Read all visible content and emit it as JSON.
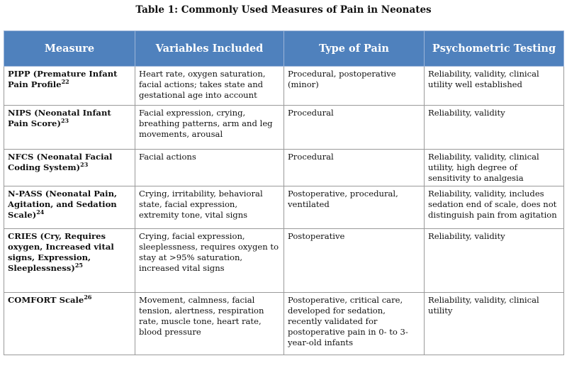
{
  "header": {
    "title": "Table 1: Commonly Used Measures of Pain in Neonates"
  },
  "table": {
    "columns": [
      "Measure",
      "Variables Included",
      "Type of Pain",
      "Psychometric Testing"
    ],
    "rows": [
      [
        {
          "text": "PIPP (Premature Infant Pain Profile",
          "ref": "22",
          "after": ""
        },
        "Heart rate, oxygen saturation, facial actions; takes state and gestational age into account",
        "Procedural, postoperative (minor)",
        "Reliability, validity, clinical utility well established"
      ],
      [
        {
          "text": "NIPS (Neonatal Infant Pain Score)",
          "ref": "23",
          "after": ""
        },
        "Facial expression, crying, breathing patterns, arm and leg movements, arousal",
        "Procedural",
        "Reliability, validity"
      ],
      [
        {
          "text": "NFCS (Neonatal Facial Coding System)",
          "ref": "23",
          "after": ""
        },
        "Facial actions",
        "Procedural",
        "Reliability, validity, clinical utility, high degree of sensitivity to analgesia"
      ],
      [
        {
          "text": "N-PASS (Neonatal Pain, Agitation, and Sedation Scale)",
          "ref": "24",
          "after": ""
        },
        "Crying, irritability, behavioral state, facial expression, extremity tone, vital signs",
        "Postoperative, procedural, ventilated",
        "Reliability, validity, includes sedation end of scale, does not distinguish pain from agitation"
      ],
      [
        {
          "text": "CRIES (Cry, Requires oxygen, Increased vital signs, Expression, Sleeplessness)",
          "ref": "25",
          "after": ""
        },
        "Crying, facial expression, sleeplessness, requires oxygen to stay at >95% saturation, increased vital signs",
        "Postoperative",
        "Reliability, validity"
      ],
      [
        {
          "text": "COMFORT Scale",
          "ref": "26",
          "after": ""
        },
        "Movement, calmness, facial tension, alertness, respiration rate, muscle tone, heart rate, blood pressure",
        "Postoperative, critical care, developed for sedation, recently validated for postoperative pain in 0- to 3-year-old infants",
        "Reliability, validity, clinical utility"
      ]
    ]
  }
}
